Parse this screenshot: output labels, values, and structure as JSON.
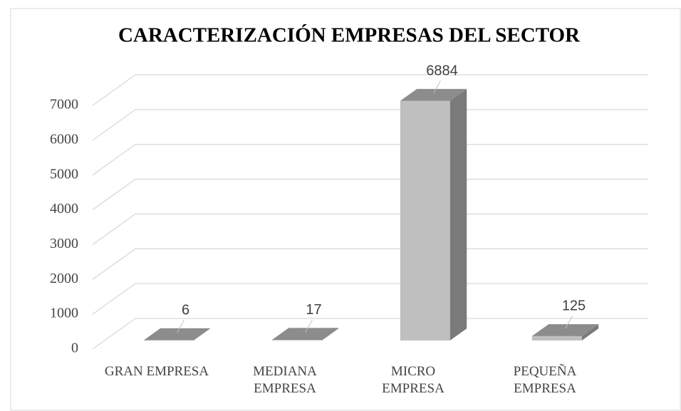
{
  "chart_data": {
    "type": "bar3d",
    "title": "CARACTERIZACIÓN EMPRESAS DEL SECTOR",
    "categories": [
      "GRAN EMPRESA",
      "MEDIANA\nEMPRESA",
      "MICRO\nEMPRESA",
      "PEQUEÑA\nEMPRESA"
    ],
    "values": [
      6,
      17,
      6884,
      125
    ],
    "ylim": [
      0,
      7000
    ],
    "yticks": [
      0,
      1000,
      2000,
      3000,
      4000,
      5000,
      6000,
      7000
    ],
    "grid": true,
    "colors": {
      "front": "#bfbfbf",
      "top": "#8c8c8c",
      "side": "#7a7a7a"
    }
  }
}
